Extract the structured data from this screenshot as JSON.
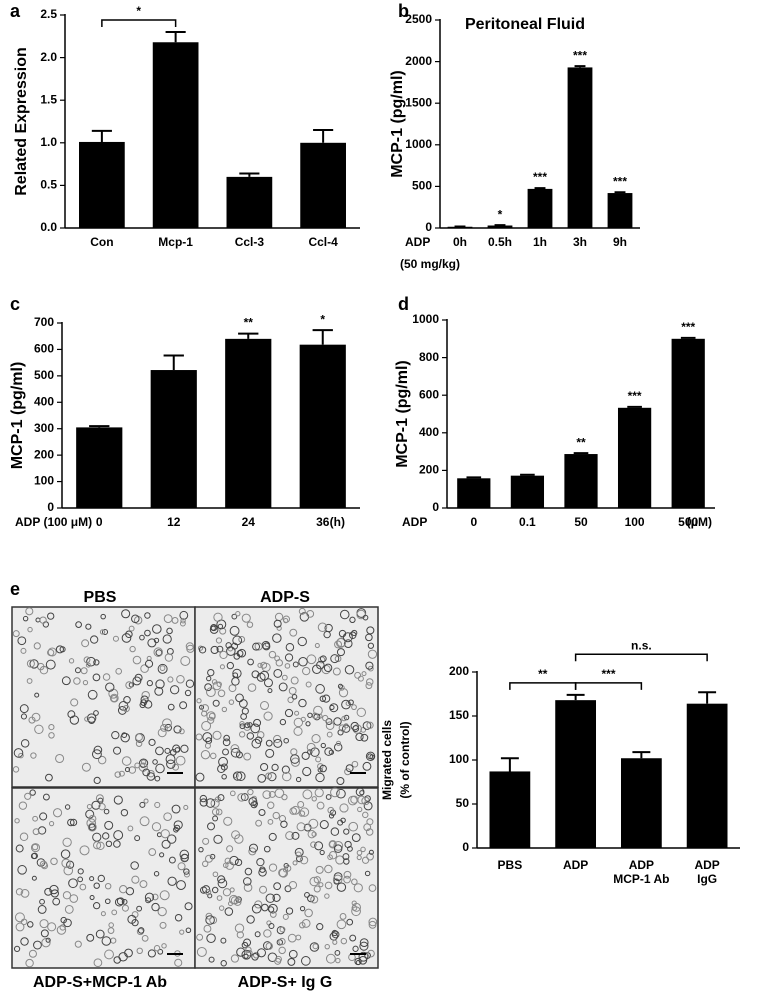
{
  "chart_data": [
    {
      "type": "bar",
      "panel": "a",
      "ylabel": "Related Expression",
      "categories": [
        "Con",
        "Mcp-1",
        "Ccl-3",
        "Ccl-4"
      ],
      "values": [
        1.01,
        2.18,
        0.6,
        1.0
      ],
      "errors": [
        0.13,
        0.12,
        0.04,
        0.15
      ],
      "color": "#000000",
      "ylim": [
        0,
        2.5
      ],
      "yticks": [
        {
          "value": 0,
          "label": "0.0"
        },
        {
          "value": 0.5,
          "label": "0.5"
        },
        {
          "value": 1,
          "label": "1.0"
        },
        {
          "value": 1.5,
          "label": "1.5"
        },
        {
          "value": 2,
          "label": "2.0"
        },
        {
          "value": 2.5,
          "label": "2.5"
        }
      ],
      "brackets": [
        {
          "between": [
            0,
            1
          ],
          "label": "*"
        }
      ]
    },
    {
      "type": "bar",
      "panel": "b",
      "title": "Peritoneal Fluid",
      "ylabel": "MCP-1 (pg/ml)",
      "xlabel_lines": [
        "ADP",
        "(50 mg/kg)"
      ],
      "categories": [
        "0h",
        "0.5h",
        "1h",
        "3h",
        "9h"
      ],
      "values": [
        15,
        30,
        470,
        1930,
        420
      ],
      "errors": [
        3,
        5,
        10,
        15,
        10
      ],
      "color": "#000000",
      "significance": [
        null,
        "*",
        "***",
        "***",
        "***"
      ],
      "ylim": [
        0,
        2500
      ],
      "yticks": [
        0,
        500,
        1000,
        1500,
        2000,
        2500
      ]
    },
    {
      "type": "bar",
      "panel": "c",
      "ylabel": "MCP-1 (pg/ml)",
      "xlabel_lines": [
        "ADP (100 μM)"
      ],
      "x_unit": "(h)",
      "categories": [
        "0",
        "12",
        "24",
        "36"
      ],
      "values": [
        305,
        522,
        640,
        618
      ],
      "errors": [
        5,
        55,
        20,
        55
      ],
      "color": "#000000",
      "significance": [
        null,
        null,
        "**",
        "*"
      ],
      "ylim": [
        0,
        700
      ],
      "yticks": [
        0,
        100,
        200,
        300,
        400,
        500,
        600,
        700
      ]
    },
    {
      "type": "bar",
      "panel": "d",
      "ylabel": "MCP-1 (pg/ml)",
      "xlabel_lines": [
        "ADP"
      ],
      "x_unit": "(μM)",
      "categories": [
        "0",
        "0.1",
        "50",
        "100",
        "500"
      ],
      "values": [
        158,
        172,
        287,
        533,
        900
      ],
      "errors": [
        5,
        5,
        5,
        5,
        5
      ],
      "color": "#000000",
      "significance": [
        null,
        null,
        "**",
        "***",
        "***"
      ],
      "ylim": [
        0,
        1000
      ],
      "yticks": [
        0,
        200,
        400,
        600,
        800,
        1000
      ]
    },
    {
      "type": "bar",
      "panel": "e",
      "ylabel_lines": [
        "Migrated cells",
        "(% of control)"
      ],
      "categories": [
        [
          "PBS"
        ],
        [
          "ADP"
        ],
        [
          "ADP",
          "MCP-1 Ab"
        ],
        [
          "ADP",
          "IgG"
        ]
      ],
      "values": [
        87,
        168,
        102,
        164
      ],
      "errors": [
        15,
        6,
        7,
        13
      ],
      "color": "#000000",
      "ylim": [
        0,
        200
      ],
      "yticks": [
        0,
        50,
        100,
        150,
        200
      ],
      "brackets": [
        {
          "between": [
            0,
            1
          ],
          "label": "**"
        },
        {
          "between": [
            1,
            2
          ],
          "label": "***"
        },
        {
          "between": [
            1,
            3
          ],
          "label": "n.s."
        }
      ]
    }
  ],
  "micrographs": {
    "labels": [
      "PBS",
      "ADP-S",
      "ADP-S+MCP-1 Ab",
      "ADP-S+ Ig G"
    ]
  }
}
